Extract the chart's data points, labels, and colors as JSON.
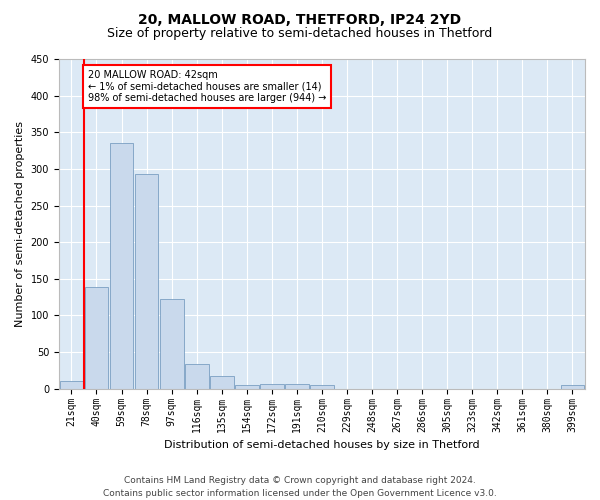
{
  "title": "20, MALLOW ROAD, THETFORD, IP24 2YD",
  "subtitle": "Size of property relative to semi-detached houses in Thetford",
  "xlabel": "Distribution of semi-detached houses by size in Thetford",
  "ylabel": "Number of semi-detached properties",
  "categories": [
    "21sqm",
    "40sqm",
    "59sqm",
    "78sqm",
    "97sqm",
    "116sqm",
    "135sqm",
    "154sqm",
    "172sqm",
    "191sqm",
    "210sqm",
    "229sqm",
    "248sqm",
    "267sqm",
    "286sqm",
    "305sqm",
    "323sqm",
    "342sqm",
    "361sqm",
    "380sqm",
    "399sqm"
  ],
  "values": [
    10,
    139,
    336,
    293,
    123,
    34,
    18,
    5,
    7,
    6,
    5,
    0,
    0,
    0,
    0,
    0,
    0,
    0,
    0,
    0,
    5
  ],
  "bar_color": "#c9d9ec",
  "bar_edge_color": "#7a9fc2",
  "highlight_label": "20 MALLOW ROAD: 42sqm",
  "pct_smaller": "1% of semi-detached houses are smaller (14)",
  "pct_larger": "98% of semi-detached houses are larger (944)",
  "ylim": [
    0,
    450
  ],
  "yticks": [
    0,
    50,
    100,
    150,
    200,
    250,
    300,
    350,
    400,
    450
  ],
  "footer_line1": "Contains HM Land Registry data © Crown copyright and database right 2024.",
  "footer_line2": "Contains public sector information licensed under the Open Government Licence v3.0.",
  "bg_color": "#ffffff",
  "plot_bg_color": "#dce9f5",
  "title_fontsize": 10,
  "subtitle_fontsize": 9,
  "axis_label_fontsize": 8,
  "tick_fontsize": 7,
  "footer_fontsize": 6.5
}
